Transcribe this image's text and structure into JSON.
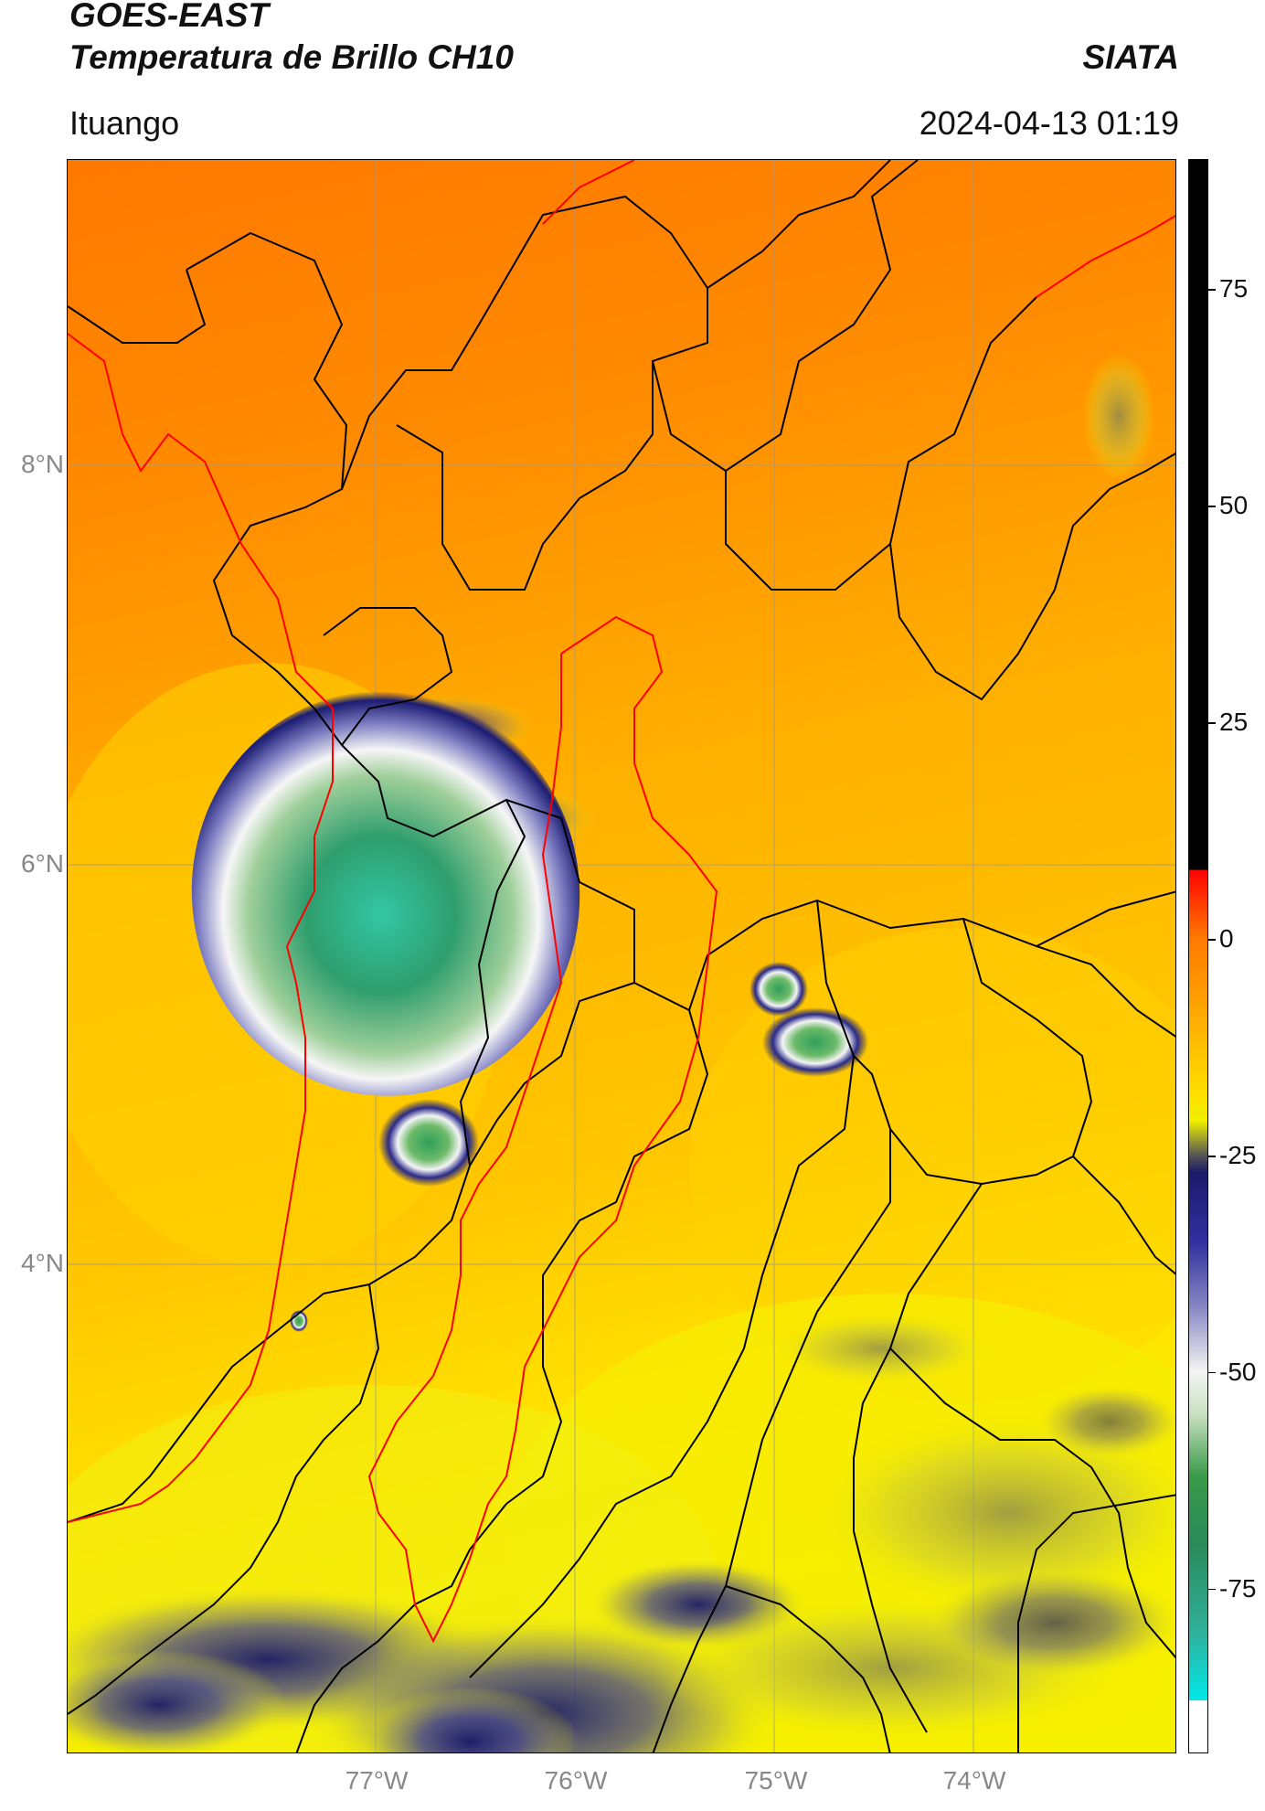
{
  "header": {
    "title_line1": "GOES-EAST",
    "title_line2": "Temperatura de Brillo CH10",
    "organization": "SIATA",
    "location": "Ituango",
    "timestamp": "2024-04-13 01:19"
  },
  "map": {
    "latitude_labels": [
      "8°N",
      "6°N",
      "4°N"
    ],
    "longitude_labels": [
      "77°W",
      "76°W",
      "75°W",
      "74°W"
    ],
    "colors": {
      "background_warm": "#ff8a00",
      "mid": "#ffc800",
      "cool": "#f5f200",
      "cold_navy": "#1e1e78",
      "cold_white": "#f5f5f5",
      "coldest_green": "#2ea578",
      "coldest_teal": "#3ad6b4",
      "political_border": "#000000",
      "highlight_border": "#ff0000",
      "gridline": "#9a9a9a"
    }
  },
  "colorbar": {
    "ticks": [
      "75",
      "50",
      "25",
      "0",
      "-25",
      "-50",
      "-75"
    ],
    "stops": [
      {
        "value": 90,
        "color": "#000000"
      },
      {
        "value": 8,
        "color": "#000000"
      },
      {
        "value": 8,
        "color": "#ff0000"
      },
      {
        "value": 0,
        "color": "#ff7a00"
      },
      {
        "value": -10,
        "color": "#ffb000"
      },
      {
        "value": -18,
        "color": "#ffe000"
      },
      {
        "value": -21,
        "color": "#f0f000"
      },
      {
        "value": -25,
        "color": "#555555"
      },
      {
        "value": -27,
        "color": "#1a1a6a"
      },
      {
        "value": -35,
        "color": "#3030a0"
      },
      {
        "value": -42,
        "color": "#8080c0"
      },
      {
        "value": -50,
        "color": "#f4f4f4"
      },
      {
        "value": -55,
        "color": "#c8e0c0"
      },
      {
        "value": -62,
        "color": "#3a9a4a"
      },
      {
        "value": -70,
        "color": "#2a8a5a"
      },
      {
        "value": -80,
        "color": "#30b09a"
      },
      {
        "value": -88,
        "color": "#00e8e8"
      },
      {
        "value": -88,
        "color": "#ffffff"
      },
      {
        "value": -94,
        "color": "#ffffff"
      }
    ]
  }
}
